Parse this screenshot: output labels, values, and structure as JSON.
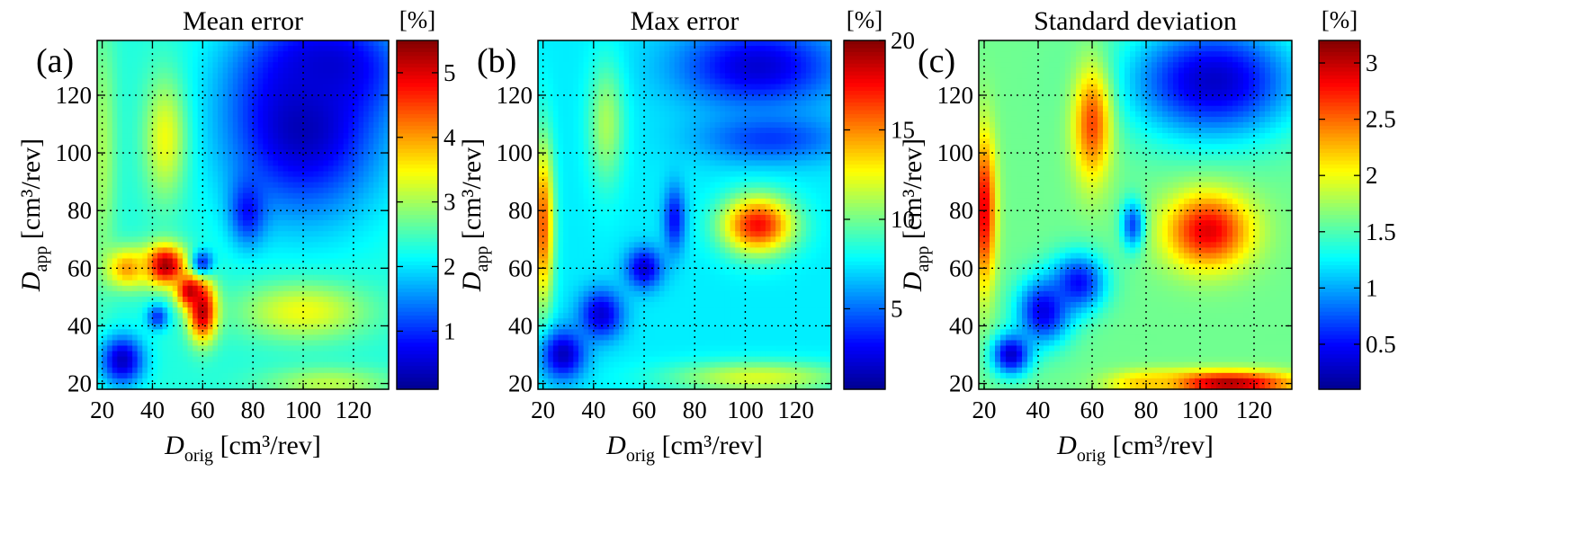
{
  "colormap": [
    "#00008f",
    "#0000ff",
    "#0080ff",
    "#00ffff",
    "#80ff80",
    "#ffff00",
    "#ff8000",
    "#ff0000",
    "#800000"
  ],
  "chart_data": [
    {
      "type": "heatmap",
      "panel_label": "(a)",
      "title": "Mean error",
      "colorbar_unit": "[%]",
      "xlabel_main": "D",
      "xlabel_sub": "orig",
      "xlabel_unit": " [cm³/rev]",
      "ylabel_main": "D",
      "ylabel_sub": "app",
      "ylabel_unit": " [cm³/rev]",
      "xlim": [
        18,
        134
      ],
      "ylim": [
        18,
        139
      ],
      "xticks": [
        "20",
        "40",
        "60",
        "80",
        "100",
        "120"
      ],
      "yticks": [
        "20",
        "40",
        "60",
        "80",
        "100",
        "120"
      ],
      "colorbar_range": [
        0.1,
        5.5
      ],
      "colorbar_ticks": [
        "1",
        "2",
        "3",
        "4",
        "5"
      ],
      "grid": true,
      "background_value": 2.3,
      "features": [
        {
          "x": 100,
          "y": 110,
          "sx": 22,
          "sy": 22,
          "v": 0.3
        },
        {
          "x": 110,
          "y": 130,
          "sx": 20,
          "sy": 12,
          "v": 0.5
        },
        {
          "x": 78,
          "y": 80,
          "sx": 5,
          "sy": 8,
          "v": 0.8
        },
        {
          "x": 45,
          "y": 105,
          "sx": 6,
          "sy": 15,
          "v": 3.4
        },
        {
          "x": 20,
          "y": 100,
          "sx": 4,
          "sy": 30,
          "v": 3.0
        },
        {
          "x": 45,
          "y": 61,
          "sx": 6,
          "sy": 5,
          "v": 5.4
        },
        {
          "x": 55,
          "y": 52,
          "sx": 4,
          "sy": 4,
          "v": 5.2
        },
        {
          "x": 60,
          "y": 45,
          "sx": 4,
          "sy": 7,
          "v": 5.4
        },
        {
          "x": 30,
          "y": 60,
          "sx": 6,
          "sy": 5,
          "v": 4.0
        },
        {
          "x": 60,
          "y": 62,
          "sx": 3,
          "sy": 3,
          "v": 1.0
        },
        {
          "x": 42,
          "y": 43,
          "sx": 3,
          "sy": 3,
          "v": 1.0
        },
        {
          "x": 28,
          "y": 28,
          "sx": 6,
          "sy": 6,
          "v": 0.4
        },
        {
          "x": 100,
          "y": 45,
          "sx": 18,
          "sy": 7,
          "v": 3.4
        },
        {
          "x": 110,
          "y": 20,
          "sx": 18,
          "sy": 4,
          "v": 3.1
        }
      ]
    },
    {
      "type": "heatmap",
      "panel_label": "(b)",
      "title": "Max error",
      "colorbar_unit": "[%]",
      "xlabel_main": "D",
      "xlabel_sub": "orig",
      "xlabel_unit": " [cm³/rev]",
      "ylabel_main": "D",
      "ylabel_sub": "app",
      "ylabel_unit": " [cm³/rev]",
      "xlim": [
        18,
        134
      ],
      "ylim": [
        18,
        139
      ],
      "xticks": [
        "20",
        "40",
        "60",
        "80",
        "100",
        "120"
      ],
      "yticks": [
        "20",
        "40",
        "60",
        "80",
        "100",
        "120"
      ],
      "colorbar_range": [
        0.5,
        20
      ],
      "colorbar_ticks": [
        "5",
        "10",
        "15",
        "20"
      ],
      "grid": true,
      "background_value": 7.5,
      "features": [
        {
          "x": 105,
          "y": 130,
          "sx": 22,
          "sy": 10,
          "v": 2.0
        },
        {
          "x": 110,
          "y": 105,
          "sx": 20,
          "sy": 6,
          "v": 4.0
        },
        {
          "x": 105,
          "y": 75,
          "sx": 10,
          "sy": 7,
          "v": 17.5
        },
        {
          "x": 20,
          "y": 75,
          "sx": 3,
          "sy": 20,
          "v": 16
        },
        {
          "x": 45,
          "y": 110,
          "sx": 5,
          "sy": 15,
          "v": 11
        },
        {
          "x": 72,
          "y": 77,
          "sx": 3,
          "sy": 8,
          "v": 3
        },
        {
          "x": 60,
          "y": 60,
          "sx": 5,
          "sy": 5,
          "v": 2
        },
        {
          "x": 43,
          "y": 44,
          "sx": 6,
          "sy": 6,
          "v": 2
        },
        {
          "x": 28,
          "y": 30,
          "sx": 6,
          "sy": 6,
          "v": 1.5
        },
        {
          "x": 105,
          "y": 22,
          "sx": 25,
          "sy": 4,
          "v": 12
        }
      ]
    },
    {
      "type": "heatmap",
      "panel_label": "(c)",
      "title": "Standard deviation",
      "colorbar_unit": "[%]",
      "xlabel_main": "D",
      "xlabel_sub": "orig",
      "xlabel_unit": " [cm³/rev]",
      "ylabel_main": "D",
      "ylabel_sub": "app",
      "ylabel_unit": " [cm³/rev]",
      "xlim": [
        18,
        134
      ],
      "ylim": [
        18,
        139
      ],
      "xticks": [
        "20",
        "40",
        "60",
        "80",
        "100",
        "120"
      ],
      "yticks": [
        "20",
        "40",
        "60",
        "80",
        "100",
        "120"
      ],
      "colorbar_range": [
        0.1,
        3.2
      ],
      "colorbar_ticks": [
        "0.5",
        "1",
        "1.5",
        "2",
        "2.5",
        "3"
      ],
      "grid": true,
      "background_value": 1.6,
      "features": [
        {
          "x": 105,
          "y": 125,
          "sx": 22,
          "sy": 14,
          "v": 0.3
        },
        {
          "x": 60,
          "y": 110,
          "sx": 5,
          "sy": 14,
          "v": 2.6
        },
        {
          "x": 20,
          "y": 80,
          "sx": 3,
          "sy": 18,
          "v": 2.9
        },
        {
          "x": 103,
          "y": 73,
          "sx": 11,
          "sy": 9,
          "v": 2.9
        },
        {
          "x": 75,
          "y": 75,
          "sx": 3,
          "sy": 6,
          "v": 0.7
        },
        {
          "x": 55,
          "y": 55,
          "sx": 7,
          "sy": 7,
          "v": 0.5
        },
        {
          "x": 42,
          "y": 45,
          "sx": 7,
          "sy": 8,
          "v": 0.4
        },
        {
          "x": 30,
          "y": 30,
          "sx": 5,
          "sy": 5,
          "v": 0.3
        },
        {
          "x": 110,
          "y": 20,
          "sx": 18,
          "sy": 3,
          "v": 3.1
        },
        {
          "x": 80,
          "y": 20,
          "sx": 10,
          "sy": 3,
          "v": 2.2
        }
      ]
    }
  ]
}
